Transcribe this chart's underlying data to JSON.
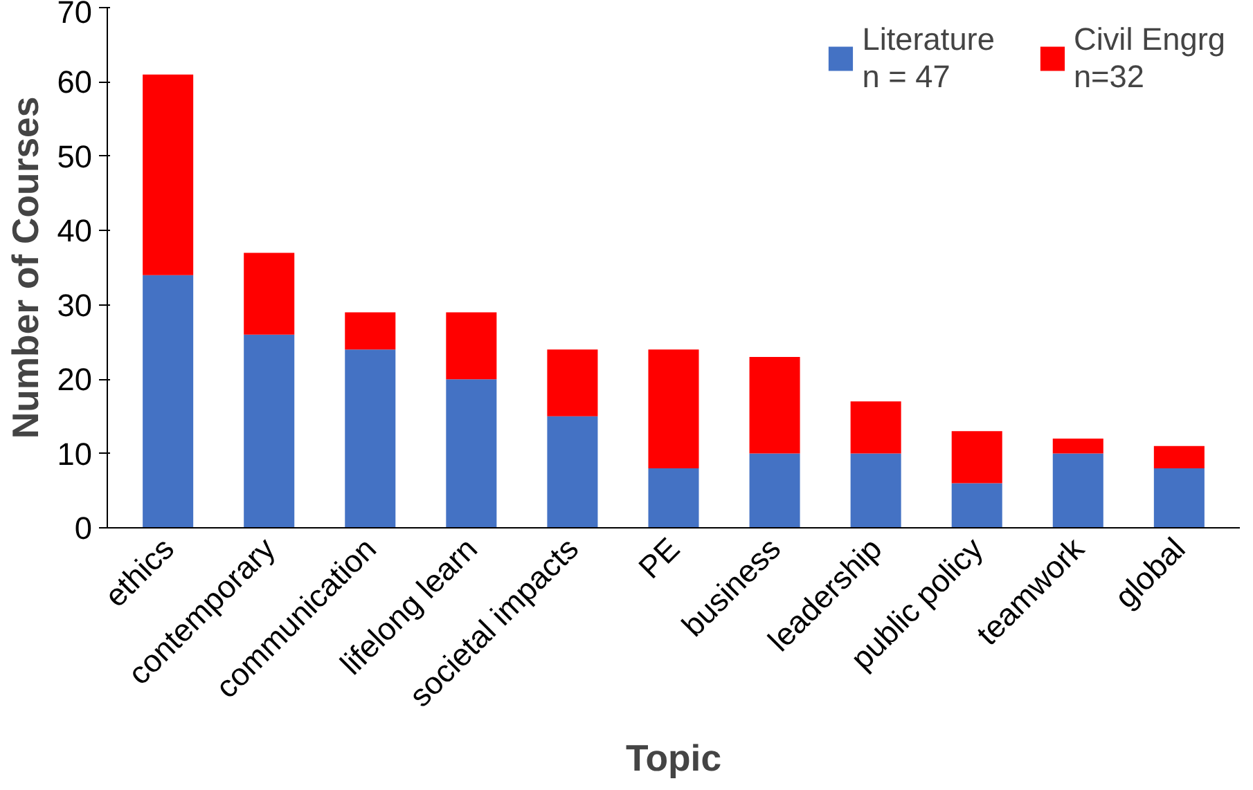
{
  "chart_data": {
    "type": "bar",
    "stacked": true,
    "xlabel": "Topic",
    "ylabel": "Number of Courses",
    "categories": [
      "ethics",
      "contemporary",
      "communication",
      "lifelong learn",
      "societal impacts",
      "PE",
      "business",
      "leadership",
      "public policy",
      "teamwork",
      "global"
    ],
    "series": [
      {
        "name": "Literature\nn = 47",
        "color": "#4472c4",
        "values": [
          34,
          26,
          24,
          20,
          15,
          8,
          10,
          10,
          6,
          10,
          8
        ]
      },
      {
        "name": "Civil Engrg\nn=32",
        "color": "#ff0000",
        "values": [
          27,
          11,
          5,
          9,
          9,
          16,
          13,
          7,
          7,
          2,
          3
        ]
      }
    ],
    "ylim": [
      0,
      70
    ],
    "yticks": [
      0,
      10,
      20,
      30,
      40,
      50,
      60,
      70
    ],
    "grid": false,
    "legend": "top right"
  }
}
